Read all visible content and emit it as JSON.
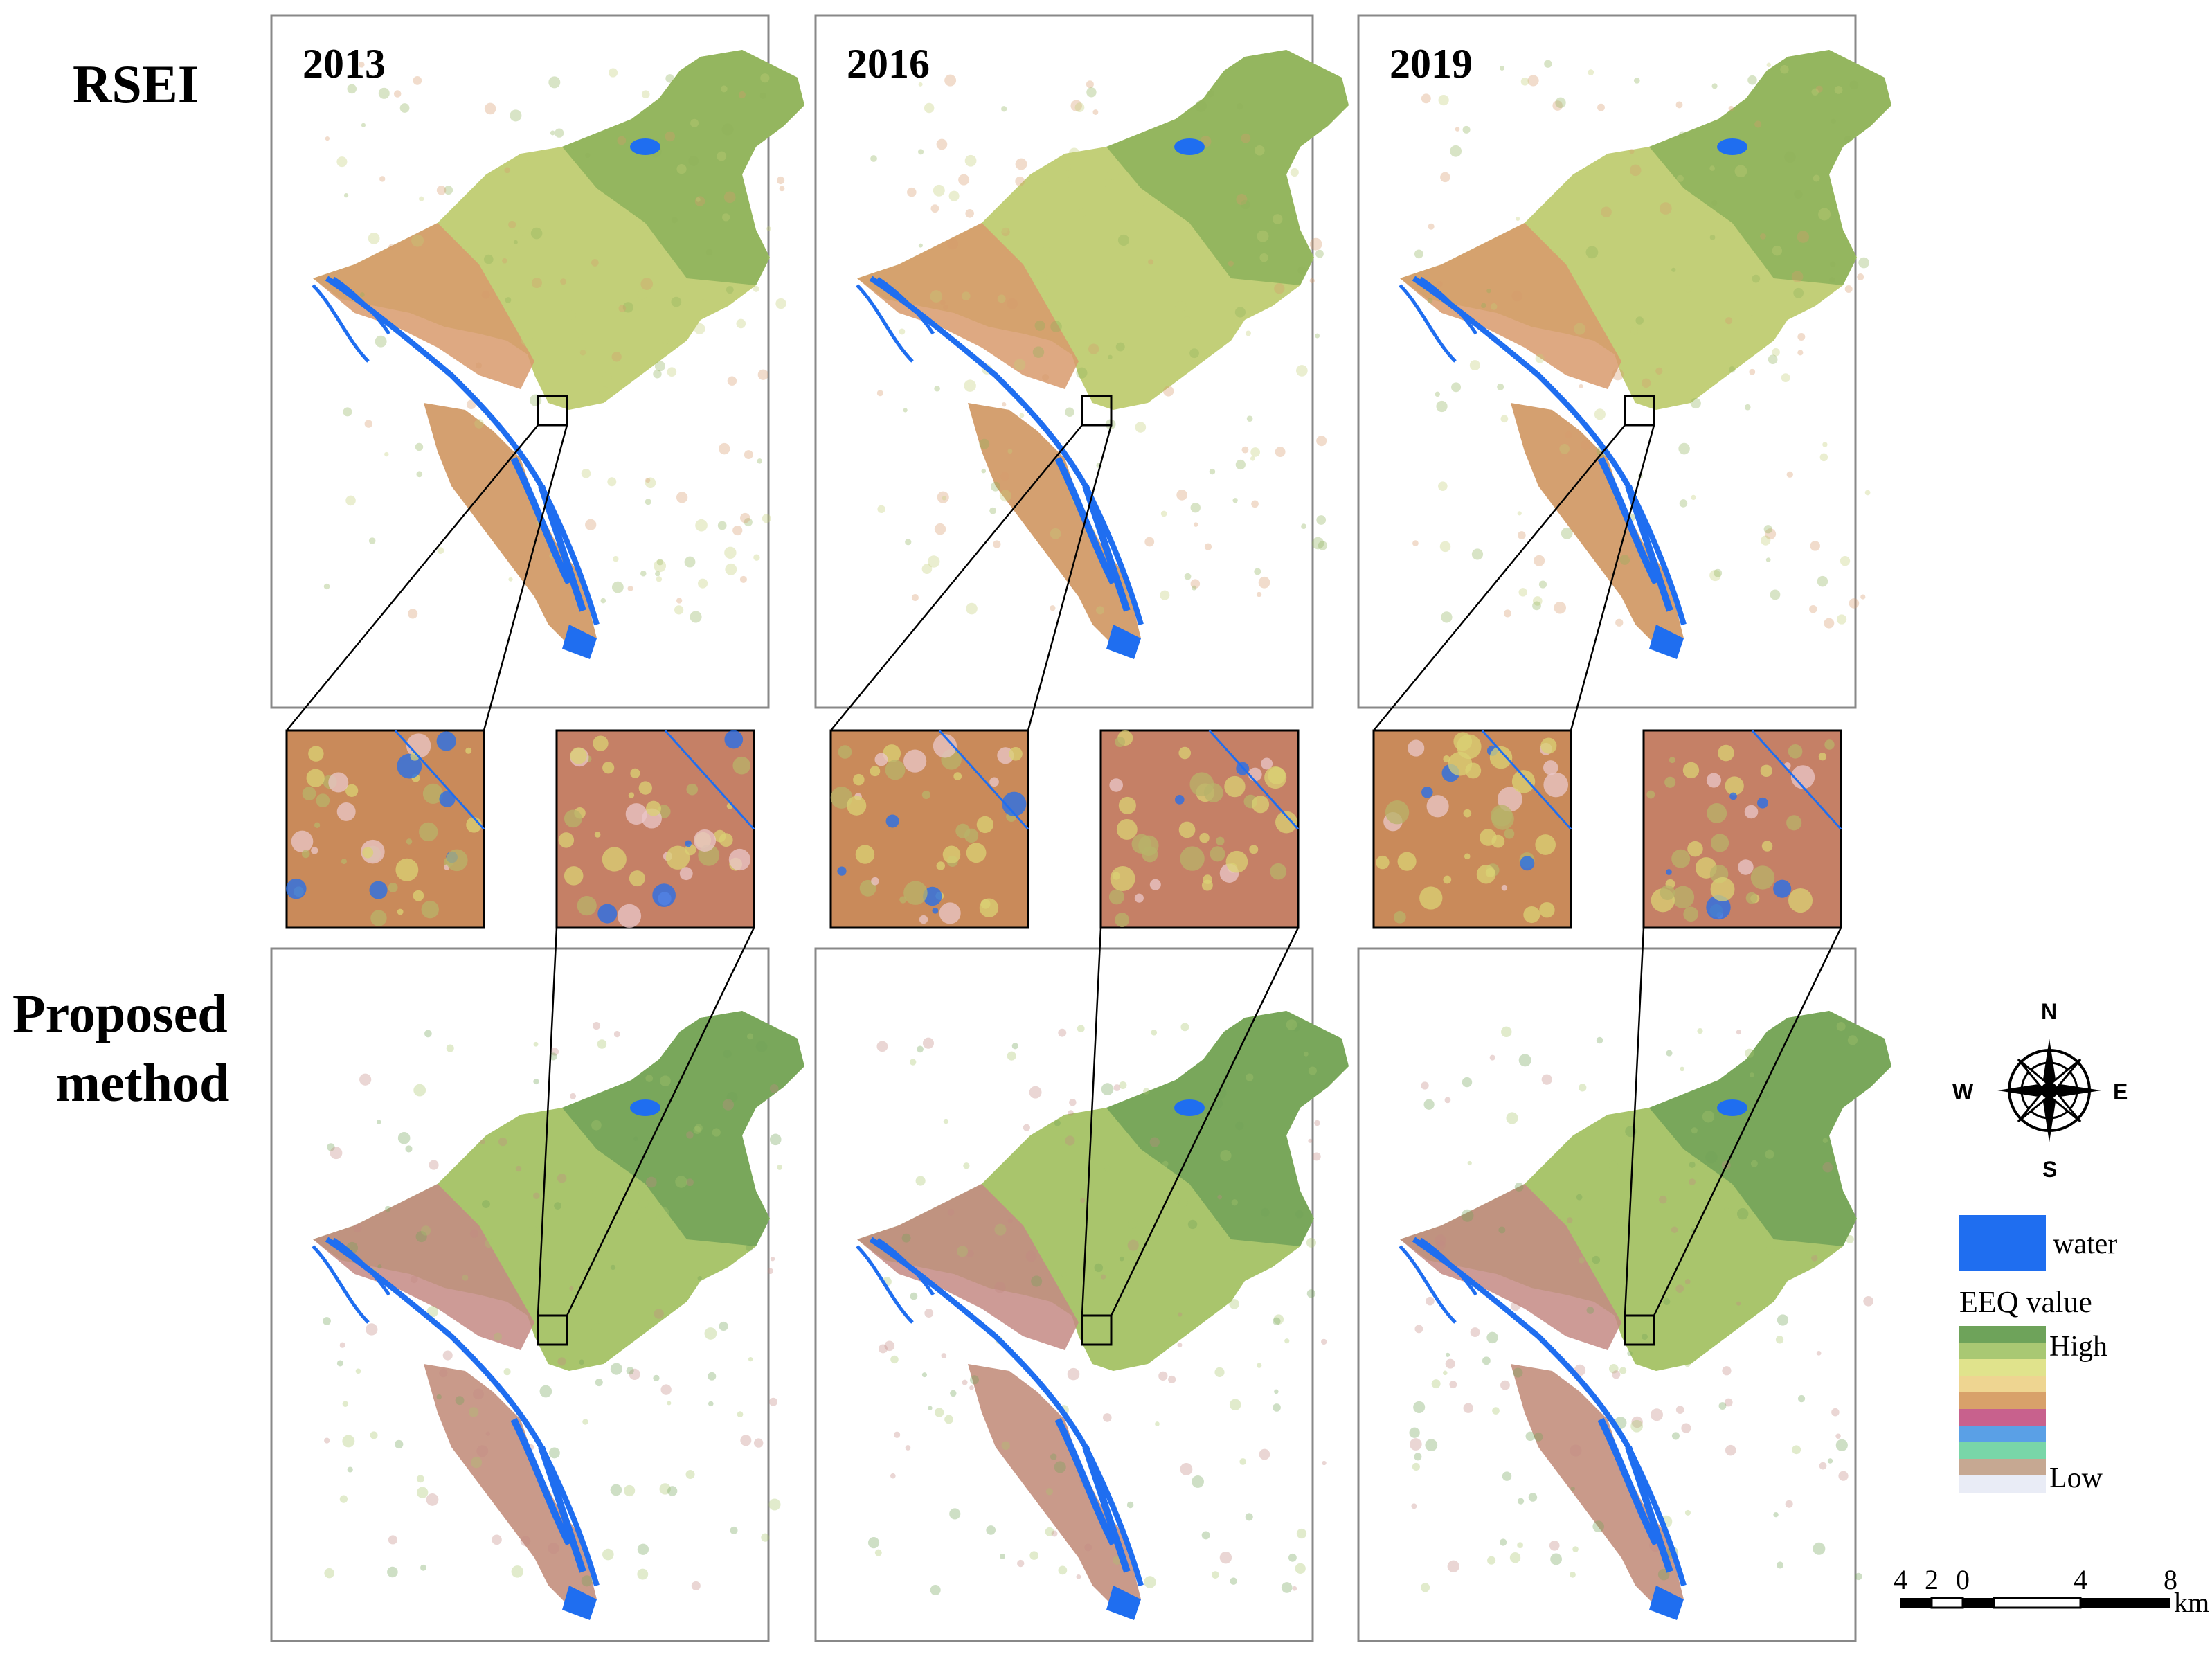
{
  "row_labels": {
    "top": "RSEI",
    "bottom_line1": "Proposed",
    "bottom_line2": "method"
  },
  "years": [
    "2013",
    "2016",
    "2019"
  ],
  "legend": {
    "water_label": "water",
    "eeq_title": "EEQ value",
    "high_label": "High",
    "low_label": "Low",
    "water_color": "#1f6ef0",
    "ramp_colors": [
      "#6ea35a",
      "#a9c873",
      "#e0e38c",
      "#eed591",
      "#d8a16a",
      "#c8618d",
      "#5aa0e6",
      "#79d6a8",
      "#c6a892",
      "#e9ecf6"
    ]
  },
  "compass": {
    "north": "N",
    "south": "S",
    "east": "E",
    "west": "W"
  },
  "scale_bar": {
    "ticks": [
      "4",
      "2",
      "0",
      "4",
      "8"
    ],
    "unit": "km"
  },
  "map_palette": {
    "rsei": {
      "north": "#8fb25c",
      "mid": "#c2cf78",
      "urban": "#d89a6c",
      "delta": "#d4a070"
    },
    "proposed": {
      "north": "#73a35a",
      "mid": "#a9c56c",
      "urban": "#c48a84",
      "delta": "#c99a8a"
    },
    "zoom_rsei": "#c98a5a",
    "zoom_proposed": "#c58066"
  }
}
